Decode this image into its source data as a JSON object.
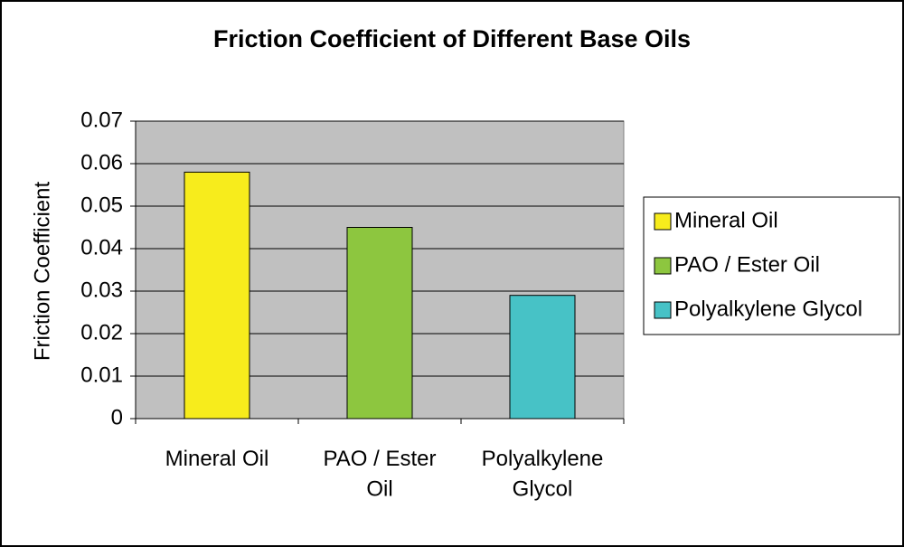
{
  "chart_data": {
    "type": "bar",
    "title": "Friction Coefficient of Different Base Oils",
    "y_label": "Friction Coefficient",
    "categories": [
      "Mineral Oil",
      "PAO / Ester Oil",
      "Polyalkylene Glycol"
    ],
    "values": [
      0.058,
      0.045,
      0.029
    ],
    "colors": [
      "#f7ec1c",
      "#8dc63f",
      "#47c2c6"
    ],
    "ylim": [
      0,
      0.07
    ],
    "yticks": [
      0,
      0.01,
      0.02,
      0.03,
      0.04,
      0.05,
      0.06,
      0.07
    ],
    "grid": true,
    "legend": "right"
  }
}
